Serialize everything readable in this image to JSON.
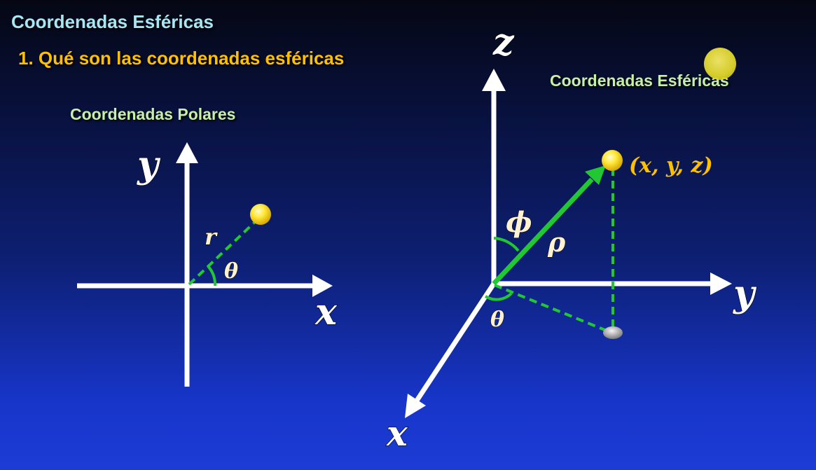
{
  "header": {
    "title": "Coordenadas Esféricas",
    "subtitle": "1. Qué son las coordenadas esféricas"
  },
  "polar": {
    "heading": "Coordenadas Polares",
    "axis_x": "x",
    "axis_y": "y",
    "radius_label": "r",
    "angle_label": "θ"
  },
  "spherical": {
    "heading": "Coordenadas Esféricas",
    "axis_x": "x",
    "axis_y": "y",
    "axis_z": "z",
    "rho_label": "ρ",
    "phi_label": "ϕ",
    "theta_label": "θ",
    "point_label": "(x, y, z)"
  },
  "colors": {
    "axis": "#ffffff",
    "vector": "#22c833",
    "dashed": "#22c833",
    "point": "#ffe030",
    "projection": "#9a9a9a",
    "title": "#a8e6f4",
    "subtitle": "#ffc000",
    "heading": "#c6f0a8"
  },
  "icons": {
    "cursor": "cursor-highlight-icon"
  }
}
